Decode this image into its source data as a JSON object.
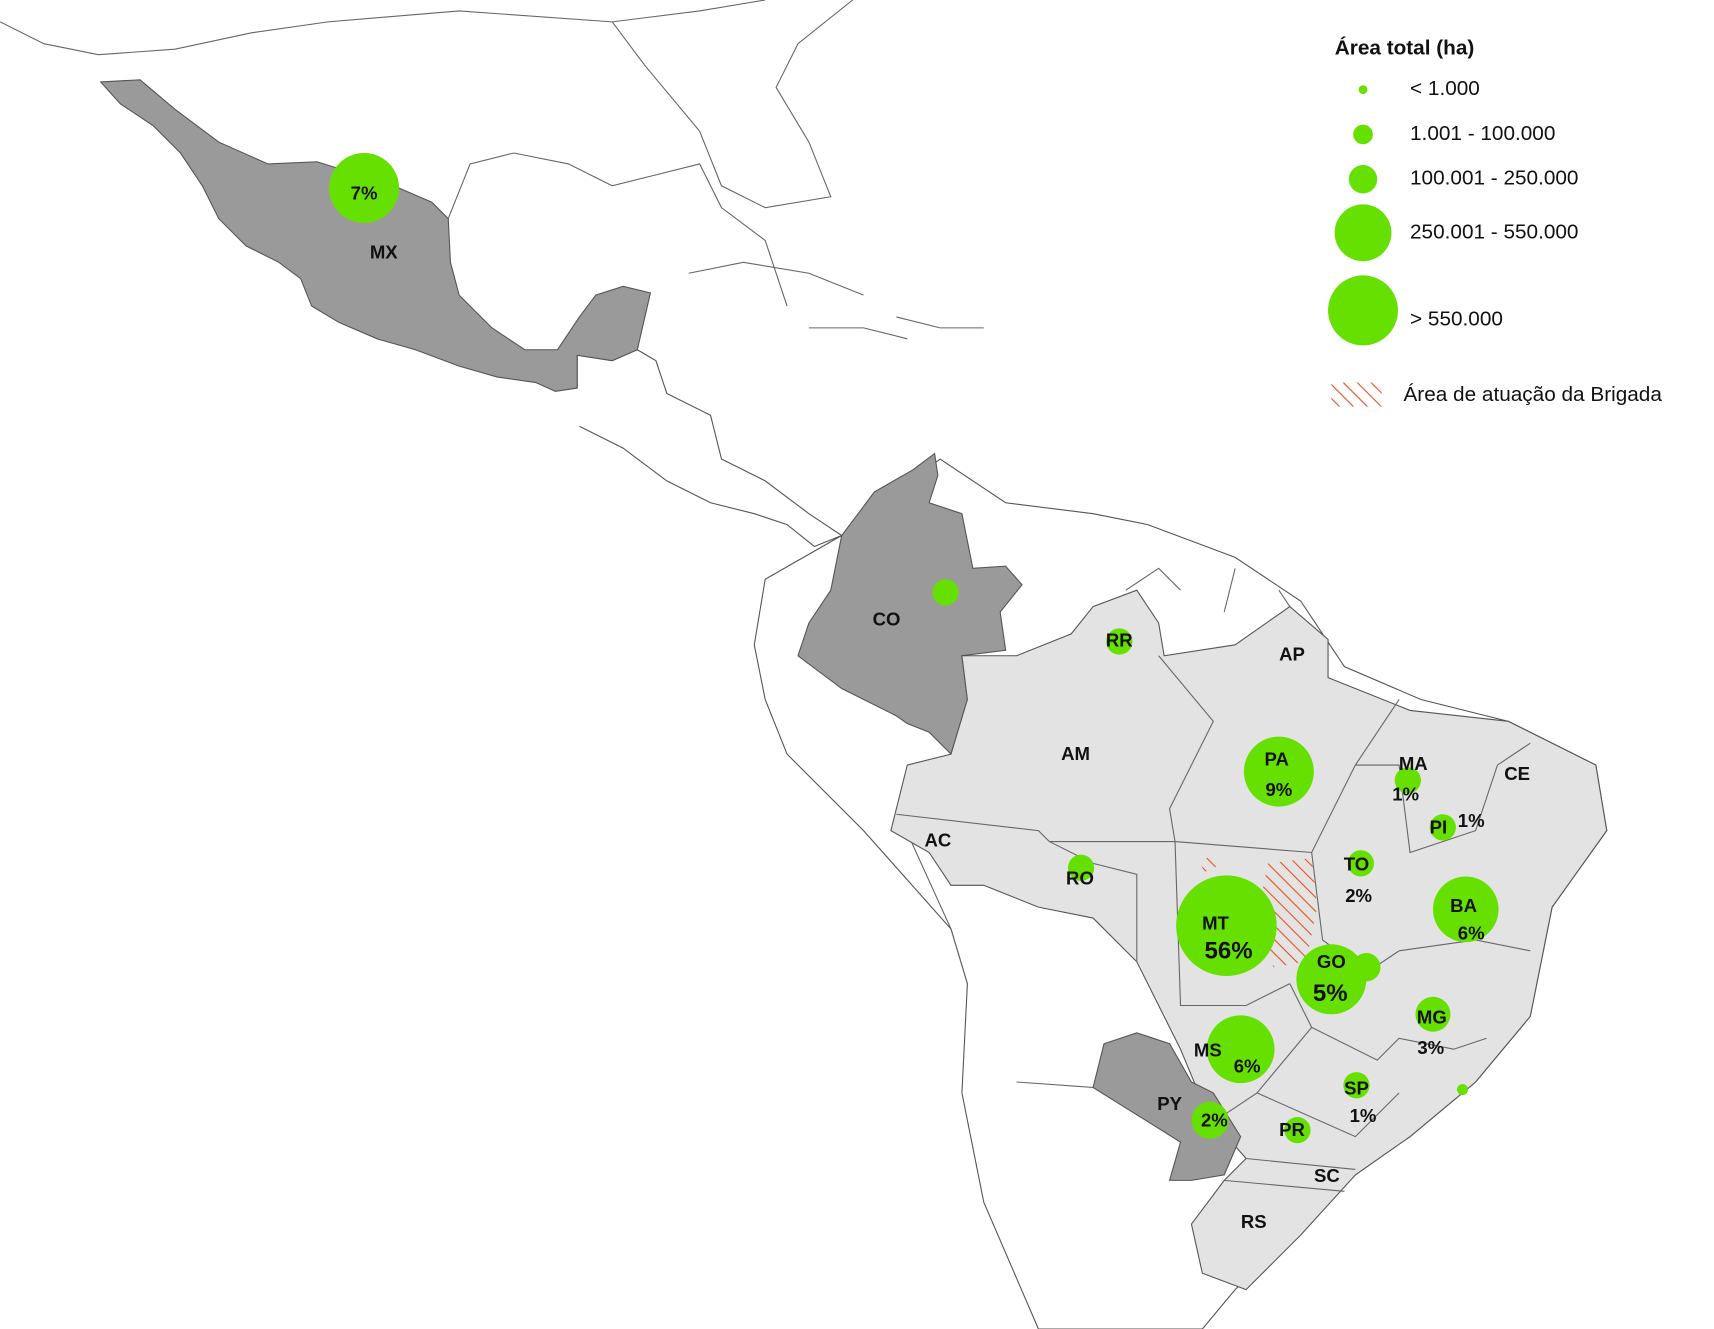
{
  "legend": {
    "title": "Área total (ha)",
    "classes": [
      "< 1.000",
      "1.001 - 100.000",
      "100.001 - 250.000",
      "250.001 - 550.000",
      "> 550.000"
    ],
    "hatch": "Área de atuação da Brigada"
  },
  "regions": [
    {
      "code": "MX",
      "pct": "7%"
    },
    {
      "code": "CO"
    },
    {
      "code": "RR"
    },
    {
      "code": "AP"
    },
    {
      "code": "AM"
    },
    {
      "code": "PA",
      "pct": "9%"
    },
    {
      "code": "MA",
      "pct": "1%"
    },
    {
      "code": "CE"
    },
    {
      "code": "PI",
      "pct": "1%"
    },
    {
      "code": "AC"
    },
    {
      "code": "TO",
      "pct": "2%"
    },
    {
      "code": "RO"
    },
    {
      "code": "MT",
      "pct": "56%"
    },
    {
      "code": "BA",
      "pct": "6%"
    },
    {
      "code": "GO",
      "pct": "5%"
    },
    {
      "code": "MG",
      "pct": "3%"
    },
    {
      "code": "MS",
      "pct": "6%"
    },
    {
      "code": "PY",
      "pct": "2%"
    },
    {
      "code": "SP",
      "pct": "1%"
    },
    {
      "code": "PR"
    },
    {
      "code": "SC"
    },
    {
      "code": "RS"
    }
  ]
}
